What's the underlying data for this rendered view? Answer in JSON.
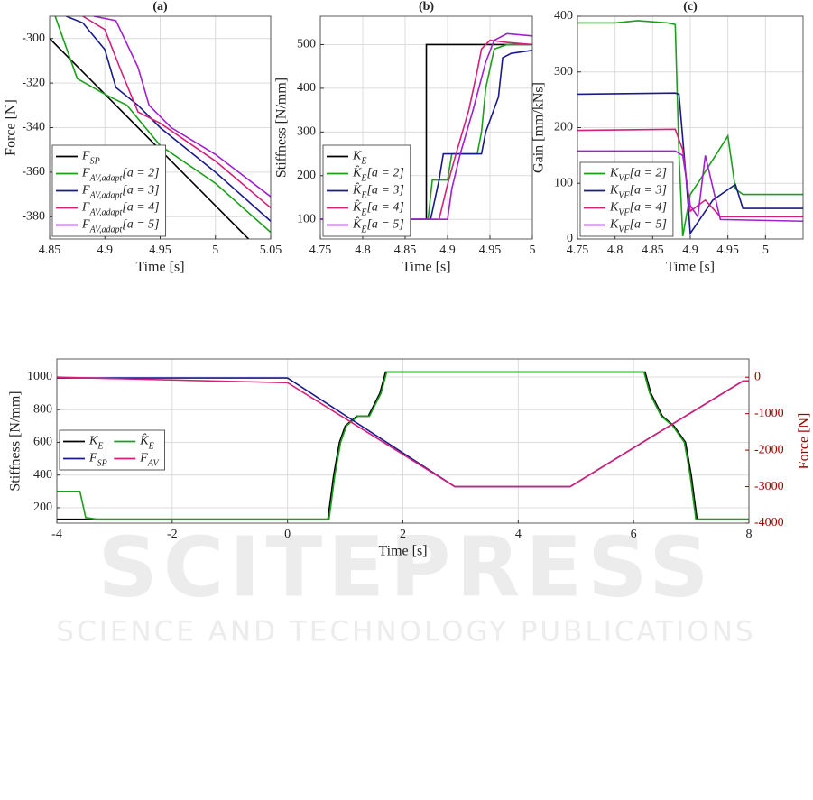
{
  "chart_data": [
    {
      "type": "line",
      "title": "(a)",
      "xlabel": "Time [s]",
      "ylabel": "Force [N]",
      "xlim": [
        4.85,
        5.05
      ],
      "ylim": [
        -390,
        -290
      ],
      "xticks": [
        4.85,
        4.9,
        4.95,
        5,
        5.05
      ],
      "yticks": [
        -300,
        -320,
        -340,
        -360,
        -380
      ],
      "grid": true,
      "legend": "lower left",
      "series": [
        {
          "name": "F_{SP}",
          "color": "#000000",
          "x": [
            4.85,
            5.03
          ],
          "values": [
            -300,
            -390
          ]
        },
        {
          "name": "F_{AV,adapt}[a = 2]",
          "color": "#1aa01a",
          "x": [
            4.855,
            4.875,
            4.9,
            4.92,
            4.95,
            5.0,
            5.05
          ],
          "values": [
            -290,
            -318,
            -325,
            -330,
            -348,
            -365,
            -387
          ]
        },
        {
          "name": "F_{AV,adapt}[a = 3]",
          "color": "#1a1a8c",
          "x": [
            4.865,
            4.88,
            4.9,
            4.91,
            4.93,
            4.95,
            5.0,
            5.05
          ],
          "values": [
            -290,
            -293,
            -305,
            -322,
            -330,
            -340,
            -360,
            -382
          ]
        },
        {
          "name": "F_{AV,adapt}[a = 4]",
          "color": "#d4207a",
          "x": [
            4.88,
            4.9,
            4.915,
            4.93,
            4.95,
            5.0,
            5.05
          ],
          "values": [
            -290,
            -296,
            -315,
            -333,
            -338,
            -355,
            -376
          ]
        },
        {
          "name": "F_{AV,adapt}[a = 5]",
          "color": "#a020d0",
          "x": [
            4.89,
            4.91,
            4.93,
            4.94,
            4.96,
            5.0,
            5.05
          ],
          "values": [
            -290,
            -292,
            -313,
            -330,
            -340,
            -352,
            -371
          ]
        }
      ]
    },
    {
      "type": "line",
      "title": "(b)",
      "xlabel": "Time [s]",
      "ylabel": "Stiffness [N/mm]",
      "xlim": [
        4.75,
        5
      ],
      "ylim": [
        55,
        565
      ],
      "xticks": [
        4.75,
        4.8,
        4.85,
        4.9,
        4.95,
        5
      ],
      "yticks": [
        100,
        200,
        300,
        400,
        500
      ],
      "grid": true,
      "legend": "lower left",
      "series": [
        {
          "name": "K_{E}",
          "color": "#000000",
          "x": [
            4.75,
            4.875,
            4.875,
            5
          ],
          "values": [
            100,
            100,
            500,
            500
          ]
        },
        {
          "name": "K̂_{E}[a = 2]",
          "color": "#1aa01a",
          "x": [
            4.75,
            4.877,
            4.882,
            4.9,
            4.905,
            4.935,
            4.94,
            4.945,
            4.955,
            4.97,
            5
          ],
          "values": [
            100,
            100,
            190,
            190,
            250,
            250,
            300,
            400,
            490,
            500,
            500
          ]
        },
        {
          "name": "K̂_{E}[a = 3]",
          "color": "#1a1a8c",
          "x": [
            4.75,
            4.88,
            4.89,
            4.895,
            4.9,
            4.94,
            4.945,
            4.96,
            4.965,
            4.975,
            5
          ],
          "values": [
            100,
            100,
            190,
            250,
            250,
            250,
            300,
            380,
            470,
            480,
            487
          ]
        },
        {
          "name": "K̂_{E}[a = 4]",
          "color": "#d4207a",
          "x": [
            4.75,
            4.89,
            4.9,
            4.91,
            4.925,
            4.935,
            4.94,
            4.95,
            4.97,
            5
          ],
          "values": [
            100,
            100,
            180,
            250,
            350,
            440,
            490,
            510,
            505,
            500
          ]
        },
        {
          "name": "K̂_{E}[a = 5]",
          "color": "#a020d0",
          "x": [
            4.75,
            4.9,
            4.905,
            4.915,
            4.93,
            4.945,
            4.955,
            4.97,
            5
          ],
          "values": [
            100,
            100,
            170,
            250,
            350,
            460,
            510,
            525,
            520
          ]
        }
      ]
    },
    {
      "type": "line",
      "title": "(c)",
      "xlabel": "Time [s]",
      "ylabel": "Gain [mm/kNs]",
      "xlim": [
        4.75,
        5.05
      ],
      "ylim": [
        0,
        400
      ],
      "xticks": [
        4.75,
        4.8,
        4.85,
        4.9,
        4.95,
        5
      ],
      "yticks": [
        0,
        100,
        200,
        300,
        400
      ],
      "grid": true,
      "legend": "lower left",
      "series": [
        {
          "name": "K_{VF}[a = 2]",
          "color": "#1aa01a",
          "x": [
            4.75,
            4.8,
            4.83,
            4.87,
            4.88,
            4.885,
            4.89,
            4.9,
            4.91,
            4.95,
            4.96,
            4.97,
            5.05
          ],
          "values": [
            388,
            388,
            392,
            388,
            385,
            150,
            5,
            80,
            100,
            185,
            90,
            80,
            80
          ]
        },
        {
          "name": "K_{VF}[a = 3]",
          "color": "#1a1a8c",
          "x": [
            4.75,
            4.88,
            4.885,
            4.895,
            4.9,
            4.905,
            4.93,
            4.96,
            4.97,
            5.05
          ],
          "values": [
            260,
            262,
            260,
            100,
            10,
            20,
            70,
            98,
            55,
            55
          ]
        },
        {
          "name": "K_{VF}[a = 4]",
          "color": "#d4207a",
          "x": [
            4.75,
            4.88,
            4.89,
            4.9,
            4.92,
            4.94,
            4.96,
            5.05
          ],
          "values": [
            195,
            197,
            160,
            50,
            70,
            40,
            40,
            40
          ]
        },
        {
          "name": "K_{VF}[a = 5]",
          "color": "#a020d0",
          "x": [
            4.75,
            4.88,
            4.89,
            4.9,
            4.91,
            4.92,
            4.94,
            5.05
          ],
          "values": [
            158,
            158,
            150,
            60,
            40,
            150,
            35,
            32
          ]
        }
      ]
    },
    {
      "type": "line",
      "xlabel": "Time [s]",
      "ylabel": "Stiffness [N/mm]",
      "y2label": "Force [N]",
      "y2color": "#a00000",
      "xlim": [
        -4,
        8
      ],
      "ylim": [
        106,
        1110
      ],
      "y2lim": [
        -4000,
        500
      ],
      "xticks": [
        -4,
        -2,
        0,
        2,
        4,
        6,
        8
      ],
      "yticks": [
        200,
        400,
        600,
        800,
        1000
      ],
      "y2ticks": [
        0,
        -1000,
        -2000,
        -3000,
        -4000
      ],
      "grid": true,
      "legend": "center left",
      "legend_columns": 2,
      "series": [
        {
          "name": "K_{E}",
          "color": "#000000",
          "x": [
            -4,
            0.7,
            0.8,
            0.9,
            1.0,
            1.2,
            1.4,
            1.6,
            1.7,
            6.2,
            6.3,
            6.5,
            6.7,
            6.9,
            7.0,
            7.1,
            8
          ],
          "values": [
            130,
            130,
            400,
            600,
            700,
            760,
            760,
            900,
            1030,
            1030,
            900,
            760,
            700,
            600,
            400,
            130,
            130
          ]
        },
        {
          "name": "K̂_{E}",
          "color": "#1aa01a",
          "x": [
            -4,
            -3.6,
            -3.5,
            -3.3,
            0.72,
            0.82,
            0.92,
            1.02,
            1.22,
            1.42,
            1.62,
            1.72,
            6.18,
            6.28,
            6.48,
            6.68,
            6.88,
            6.98,
            7.08,
            8
          ],
          "values": [
            300,
            300,
            140,
            130,
            130,
            400,
            600,
            700,
            760,
            760,
            900,
            1030,
            1030,
            900,
            760,
            700,
            600,
            400,
            130,
            130
          ]
        },
        {
          "name": "F_{SP}",
          "color": "#1a1a8c",
          "axis": "y2",
          "x": [
            -4,
            0,
            2.9,
            4.9,
            7.9,
            8
          ],
          "values": [
            -20,
            -20,
            -3000,
            -3000,
            -100,
            -100
          ]
        },
        {
          "name": "F_{AV}",
          "color": "#d4207a",
          "axis": "y2",
          "x": [
            -4,
            0,
            2.9,
            4.9,
            7.9,
            8
          ],
          "values": [
            0,
            -150,
            -3000,
            -3000,
            -100,
            -100
          ]
        }
      ]
    }
  ],
  "watermark": {
    "title": "SCITEPRESS",
    "subtitle": "SCIENCE AND TECHNOLOGY PUBLICATIONS"
  }
}
